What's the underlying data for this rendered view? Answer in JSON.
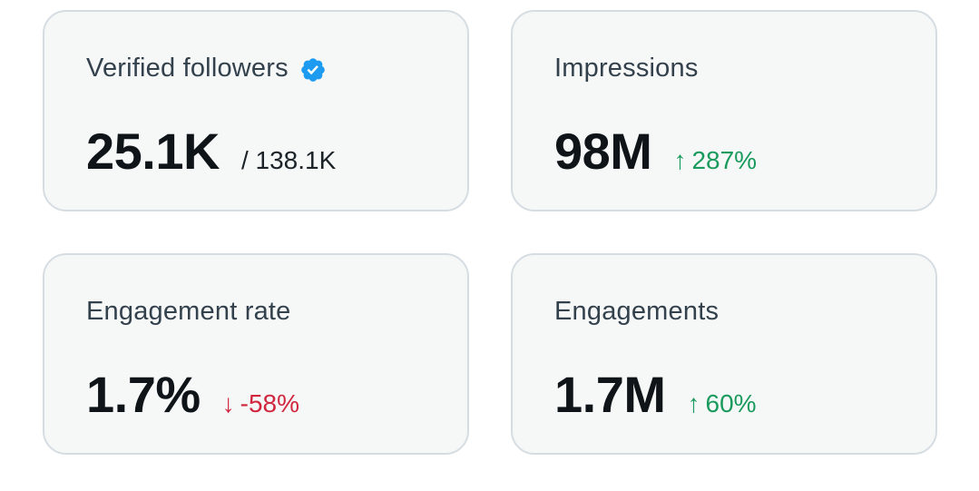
{
  "colors": {
    "card_bg": "#f6f8f8",
    "card_border": "#d6dde2",
    "verified_blue": "#1d9bf0",
    "trend_up": "#1a9a5c",
    "trend_down": "#d0263e"
  },
  "cards": {
    "verified_followers": {
      "label": "Verified followers",
      "icon": "verified-badge-icon",
      "value": "25.1K",
      "total": "/ 138.1K"
    },
    "impressions": {
      "label": "Impressions",
      "value": "98M",
      "trend_arrow": "↑",
      "trend": "287%"
    },
    "engagement_rate": {
      "label": "Engagement rate",
      "value": "1.7%",
      "trend_arrow": "↓",
      "trend": "-58%"
    },
    "engagements": {
      "label": "Engagements",
      "value": "1.7M",
      "trend_arrow": "↑",
      "trend": "60%"
    }
  }
}
